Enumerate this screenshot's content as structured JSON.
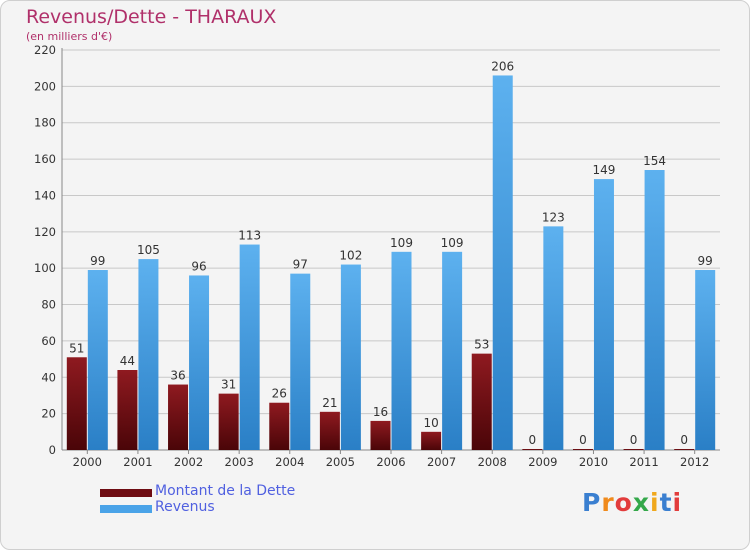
{
  "header": {
    "title": "Revenus/Dette - THARAUX",
    "subtitle": "(en milliers d'€)"
  },
  "chart_data": {
    "type": "bar",
    "categories": [
      "2000",
      "2001",
      "2002",
      "2003",
      "2004",
      "2005",
      "2006",
      "2007",
      "2008",
      "2009",
      "2010",
      "2011",
      "2012"
    ],
    "series": [
      {
        "name": "Montant de la Dette",
        "color": "#7a0e14",
        "values": [
          51,
          44,
          36,
          31,
          26,
          21,
          16,
          10,
          53,
          0,
          0,
          0,
          0
        ]
      },
      {
        "name": "Revenus",
        "color": "#4aa3e8",
        "values": [
          99,
          105,
          96,
          113,
          97,
          102,
          109,
          109,
          206,
          123,
          149,
          154,
          99
        ]
      }
    ],
    "yticks": [
      0,
      20,
      40,
      60,
      80,
      100,
      120,
      140,
      160,
      180,
      200,
      220
    ],
    "ylim": [
      0,
      220
    ],
    "grid": true,
    "legend": "bottom-left"
  },
  "logo": {
    "text": "Proxiti"
  }
}
